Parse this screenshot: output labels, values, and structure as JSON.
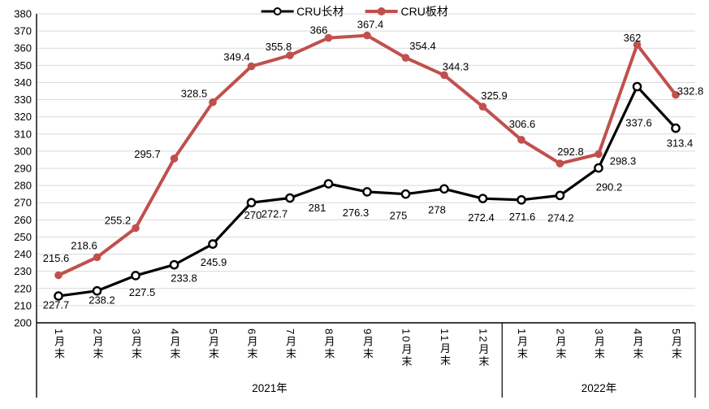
{
  "chart_data": {
    "type": "line",
    "title": "",
    "categories": [
      "1月末",
      "2月末",
      "3月末",
      "4月末",
      "5月末",
      "6月末",
      "7月末",
      "8月末",
      "9月末",
      "10月末",
      "11月末",
      "12月末",
      "1月末",
      "2月末",
      "3月末",
      "4月末",
      "5月末"
    ],
    "category_groups": [
      {
        "label": "2021年",
        "count": 12
      },
      {
        "label": "2022年",
        "count": 5
      }
    ],
    "series": [
      {
        "name": "CRU长材",
        "marker": "open-circle",
        "color": "#000000",
        "values": [
          215.6,
          218.6,
          227.5,
          233.8,
          245.9,
          270,
          272.7,
          281,
          276.3,
          275,
          278,
          272.4,
          271.6,
          274.2,
          290.2,
          337.6,
          313.4
        ]
      },
      {
        "name": "CRU板材",
        "marker": "filled-circle",
        "color": "#C0504D",
        "values": [
          227.7,
          238.2,
          255.2,
          295.7,
          328.5,
          349.4,
          355.8,
          366,
          367.4,
          354.4,
          344.3,
          325.9,
          306.6,
          292.8,
          298.3,
          362,
          332.8
        ]
      }
    ],
    "ylim": [
      200,
      380
    ],
    "ytick_step": 10,
    "yticks": [
      200,
      210,
      220,
      230,
      240,
      250,
      260,
      270,
      280,
      290,
      300,
      310,
      320,
      330,
      340,
      350,
      360,
      370,
      380
    ],
    "grid": "horizontal",
    "legend_position": "top-center",
    "colors": {
      "grid": "#D9D9D9",
      "axis": "#000000",
      "label_text": "#000000",
      "background": "#FFFFFF"
    }
  }
}
